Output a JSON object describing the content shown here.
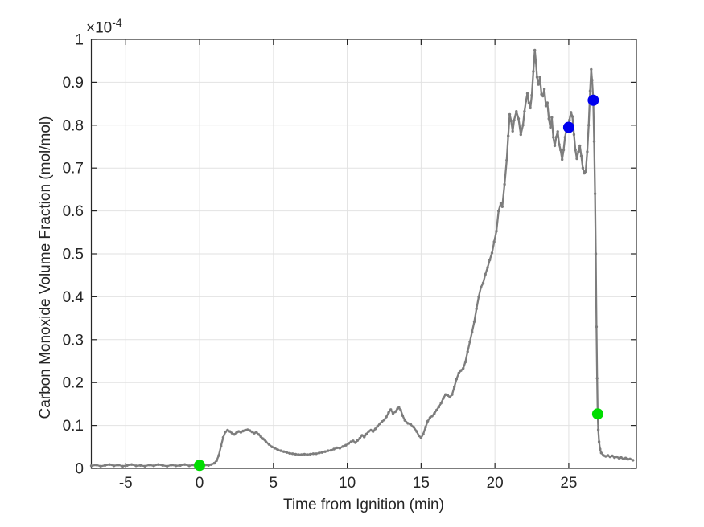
{
  "figure": {
    "background": "#ffffff",
    "exponent_base": "×10",
    "exponent_power": "-4"
  },
  "chart_data": {
    "type": "line",
    "title": "",
    "xlabel": "Time from Ignition (min)",
    "ylabel": "Carbon Monoxide Volume Fraction (mol/mol)",
    "y_axis_exponent_label": "×10^-4",
    "y_multiplier": 0.0001,
    "xlim": [
      -7.33,
      29.58
    ],
    "ylim": [
      0,
      1
    ],
    "xticks": [
      -5,
      0,
      5,
      10,
      15,
      20,
      25
    ],
    "xtick_labels": [
      "-5",
      "0",
      "5",
      "10",
      "15",
      "20",
      "25"
    ],
    "yticks": [
      0,
      0.1,
      0.2,
      0.3,
      0.4,
      0.5,
      0.6,
      0.7,
      0.8,
      0.9,
      1
    ],
    "ytick_labels": [
      "0",
      "0.1",
      "0.2",
      "0.3",
      "0.4",
      "0.5",
      "0.6",
      "0.7",
      "0.8",
      "0.9",
      "1"
    ],
    "grid": true,
    "legend": "none",
    "colors": {
      "line": "#7d7d7d",
      "grid": "#e2e2e2",
      "axis": "#262626",
      "green_marker": "#00dd00",
      "blue_marker": "#0000ee"
    },
    "series": [
      {
        "name": "co-volume-fraction-trace",
        "color": "#7d7d7d",
        "marker": "dot",
        "points": [
          [
            -7.33,
            0.006
          ],
          [
            -7.0,
            0.008
          ],
          [
            -6.7,
            0.005
          ],
          [
            -6.4,
            0.007
          ],
          [
            -6.1,
            0.009
          ],
          [
            -5.8,
            0.006
          ],
          [
            -5.5,
            0.008
          ],
          [
            -5.2,
            0.005
          ],
          [
            -4.9,
            0.007
          ],
          [
            -4.6,
            0.009
          ],
          [
            -4.3,
            0.006
          ],
          [
            -4.0,
            0.007
          ],
          [
            -3.7,
            0.005
          ],
          [
            -3.4,
            0.008
          ],
          [
            -3.1,
            0.006
          ],
          [
            -2.8,
            0.009
          ],
          [
            -2.5,
            0.007
          ],
          [
            -2.2,
            0.005
          ],
          [
            -1.9,
            0.008
          ],
          [
            -1.6,
            0.006
          ],
          [
            -1.3,
            0.007
          ],
          [
            -1.0,
            0.009
          ],
          [
            -0.7,
            0.006
          ],
          [
            -0.4,
            0.008
          ],
          [
            -0.1,
            0.007
          ],
          [
            0.0,
            0.007
          ],
          [
            0.2,
            0.006
          ],
          [
            0.4,
            0.008
          ],
          [
            0.6,
            0.007
          ],
          [
            0.8,
            0.009
          ],
          [
            1.0,
            0.012
          ],
          [
            1.15,
            0.018
          ],
          [
            1.3,
            0.03
          ],
          [
            1.45,
            0.052
          ],
          [
            1.6,
            0.072
          ],
          [
            1.75,
            0.085
          ],
          [
            1.9,
            0.089
          ],
          [
            2.05,
            0.086
          ],
          [
            2.2,
            0.082
          ],
          [
            2.35,
            0.079
          ],
          [
            2.5,
            0.083
          ],
          [
            2.65,
            0.086
          ],
          [
            2.8,
            0.084
          ],
          [
            2.95,
            0.087
          ],
          [
            3.1,
            0.089
          ],
          [
            3.25,
            0.09
          ],
          [
            3.4,
            0.088
          ],
          [
            3.55,
            0.085
          ],
          [
            3.7,
            0.082
          ],
          [
            3.85,
            0.084
          ],
          [
            4.0,
            0.079
          ],
          [
            4.15,
            0.074
          ],
          [
            4.3,
            0.069
          ],
          [
            4.5,
            0.062
          ],
          [
            4.7,
            0.056
          ],
          [
            4.9,
            0.05
          ],
          [
            5.1,
            0.047
          ],
          [
            5.3,
            0.043
          ],
          [
            5.5,
            0.041
          ],
          [
            5.7,
            0.039
          ],
          [
            5.9,
            0.037
          ],
          [
            6.1,
            0.035
          ],
          [
            6.3,
            0.034
          ],
          [
            6.5,
            0.033
          ],
          [
            6.7,
            0.032
          ],
          [
            6.9,
            0.032
          ],
          [
            7.1,
            0.033
          ],
          [
            7.3,
            0.032
          ],
          [
            7.5,
            0.033
          ],
          [
            7.7,
            0.034
          ],
          [
            7.9,
            0.034
          ],
          [
            8.1,
            0.036
          ],
          [
            8.3,
            0.037
          ],
          [
            8.5,
            0.039
          ],
          [
            8.7,
            0.041
          ],
          [
            8.9,
            0.042
          ],
          [
            9.1,
            0.045
          ],
          [
            9.3,
            0.048
          ],
          [
            9.5,
            0.047
          ],
          [
            9.7,
            0.051
          ],
          [
            9.9,
            0.054
          ],
          [
            10.1,
            0.058
          ],
          [
            10.25,
            0.062
          ],
          [
            10.4,
            0.064
          ],
          [
            10.55,
            0.06
          ],
          [
            10.7,
            0.065
          ],
          [
            10.85,
            0.07
          ],
          [
            11.0,
            0.077
          ],
          [
            11.15,
            0.073
          ],
          [
            11.3,
            0.08
          ],
          [
            11.45,
            0.086
          ],
          [
            11.6,
            0.089
          ],
          [
            11.75,
            0.086
          ],
          [
            11.9,
            0.092
          ],
          [
            12.05,
            0.098
          ],
          [
            12.2,
            0.104
          ],
          [
            12.35,
            0.109
          ],
          [
            12.5,
            0.113
          ],
          [
            12.65,
            0.12
          ],
          [
            12.8,
            0.13
          ],
          [
            12.95,
            0.137
          ],
          [
            13.1,
            0.128
          ],
          [
            13.25,
            0.132
          ],
          [
            13.4,
            0.139
          ],
          [
            13.5,
            0.142
          ],
          [
            13.62,
            0.136
          ],
          [
            13.75,
            0.123
          ],
          [
            13.9,
            0.112
          ],
          [
            14.1,
            0.105
          ],
          [
            14.3,
            0.102
          ],
          [
            14.5,
            0.096
          ],
          [
            14.7,
            0.086
          ],
          [
            14.85,
            0.076
          ],
          [
            15.0,
            0.071
          ],
          [
            15.15,
            0.08
          ],
          [
            15.3,
            0.096
          ],
          [
            15.45,
            0.11
          ],
          [
            15.6,
            0.118
          ],
          [
            15.75,
            0.122
          ],
          [
            15.9,
            0.128
          ],
          [
            16.05,
            0.136
          ],
          [
            16.2,
            0.143
          ],
          [
            16.35,
            0.152
          ],
          [
            16.5,
            0.163
          ],
          [
            16.65,
            0.172
          ],
          [
            16.8,
            0.17
          ],
          [
            16.95,
            0.166
          ],
          [
            17.1,
            0.172
          ],
          [
            17.25,
            0.19
          ],
          [
            17.4,
            0.208
          ],
          [
            17.55,
            0.222
          ],
          [
            17.7,
            0.228
          ],
          [
            17.85,
            0.233
          ],
          [
            18.0,
            0.248
          ],
          [
            18.15,
            0.272
          ],
          [
            18.3,
            0.295
          ],
          [
            18.45,
            0.318
          ],
          [
            18.6,
            0.342
          ],
          [
            18.75,
            0.372
          ],
          [
            18.9,
            0.4
          ],
          [
            19.05,
            0.422
          ],
          [
            19.2,
            0.432
          ],
          [
            19.35,
            0.452
          ],
          [
            19.5,
            0.468
          ],
          [
            19.65,
            0.486
          ],
          [
            19.8,
            0.502
          ],
          [
            19.95,
            0.528
          ],
          [
            20.1,
            0.553
          ],
          [
            20.25,
            0.6
          ],
          [
            20.4,
            0.618
          ],
          [
            20.5,
            0.61
          ],
          [
            20.65,
            0.662
          ],
          [
            20.8,
            0.718
          ],
          [
            20.9,
            0.775
          ],
          [
            21.0,
            0.825
          ],
          [
            21.1,
            0.81
          ],
          [
            21.2,
            0.786
          ],
          [
            21.3,
            0.812
          ],
          [
            21.45,
            0.832
          ],
          [
            21.6,
            0.815
          ],
          [
            21.75,
            0.778
          ],
          [
            21.9,
            0.8
          ],
          [
            22.0,
            0.832
          ],
          [
            22.1,
            0.856
          ],
          [
            22.2,
            0.874
          ],
          [
            22.3,
            0.852
          ],
          [
            22.4,
            0.84
          ],
          [
            22.5,
            0.87
          ],
          [
            22.6,
            0.925
          ],
          [
            22.7,
            0.975
          ],
          [
            22.78,
            0.945
          ],
          [
            22.85,
            0.912
          ],
          [
            22.95,
            0.895
          ],
          [
            23.05,
            0.912
          ],
          [
            23.15,
            0.872
          ],
          [
            23.25,
            0.868
          ],
          [
            23.35,
            0.884
          ],
          [
            23.45,
            0.845
          ],
          [
            23.55,
            0.852
          ],
          [
            23.65,
            0.815
          ],
          [
            23.75,
            0.795
          ],
          [
            23.85,
            0.818
          ],
          [
            23.95,
            0.772
          ],
          [
            24.05,
            0.752
          ],
          [
            24.15,
            0.772
          ],
          [
            24.25,
            0.785
          ],
          [
            24.35,
            0.755
          ],
          [
            24.45,
            0.742
          ],
          [
            24.55,
            0.72
          ],
          [
            24.65,
            0.742
          ],
          [
            24.75,
            0.772
          ],
          [
            24.85,
            0.792
          ],
          [
            24.95,
            0.796
          ],
          [
            25.05,
            0.812
          ],
          [
            25.15,
            0.83
          ],
          [
            25.25,
            0.82
          ],
          [
            25.35,
            0.778
          ],
          [
            25.45,
            0.742
          ],
          [
            25.55,
            0.722
          ],
          [
            25.65,
            0.738
          ],
          [
            25.75,
            0.752
          ],
          [
            25.85,
            0.728
          ],
          [
            25.95,
            0.7
          ],
          [
            26.05,
            0.688
          ],
          [
            26.15,
            0.692
          ],
          [
            26.25,
            0.738
          ],
          [
            26.35,
            0.8
          ],
          [
            26.45,
            0.88
          ],
          [
            26.52,
            0.93
          ],
          [
            26.58,
            0.905
          ],
          [
            26.66,
            0.858
          ],
          [
            26.72,
            0.762
          ],
          [
            26.78,
            0.64
          ],
          [
            26.83,
            0.5
          ],
          [
            26.88,
            0.33
          ],
          [
            26.92,
            0.21
          ],
          [
            26.96,
            0.125
          ],
          [
            27.0,
            0.09
          ],
          [
            27.05,
            0.062
          ],
          [
            27.12,
            0.045
          ],
          [
            27.2,
            0.036
          ],
          [
            27.35,
            0.03
          ],
          [
            27.5,
            0.028
          ],
          [
            27.65,
            0.03
          ],
          [
            27.8,
            0.027
          ],
          [
            27.95,
            0.029
          ],
          [
            28.1,
            0.025
          ],
          [
            28.25,
            0.027
          ],
          [
            28.4,
            0.024
          ],
          [
            28.55,
            0.025
          ],
          [
            28.7,
            0.022
          ],
          [
            28.85,
            0.024
          ],
          [
            29.0,
            0.021
          ],
          [
            29.15,
            0.022
          ],
          [
            29.35,
            0.019
          ]
        ]
      },
      {
        "name": "event-markers-green",
        "color": "#00dd00",
        "marker": "filled-circle",
        "points": [
          [
            0.0,
            0.007
          ],
          [
            26.96,
            0.127
          ]
        ]
      },
      {
        "name": "event-markers-blue",
        "color": "#0000ee",
        "marker": "filled-circle",
        "points": [
          [
            25.0,
            0.795
          ],
          [
            26.66,
            0.858
          ]
        ]
      }
    ]
  }
}
